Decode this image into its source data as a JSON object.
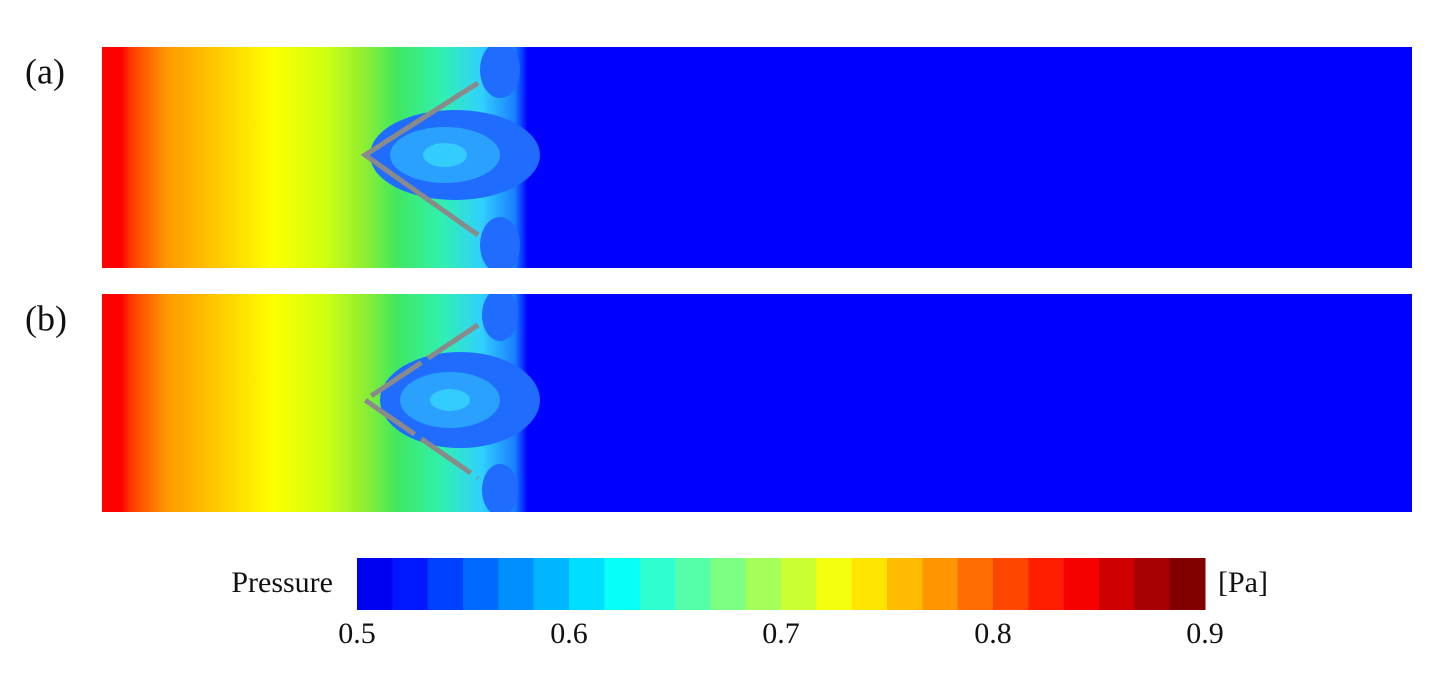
{
  "panels": [
    {
      "label": "(a)"
    },
    {
      "label": "(b)"
    }
  ],
  "colorbar": {
    "title": "Pressure",
    "unit": "[Pa]",
    "range": [
      0.5,
      0.9
    ],
    "ticks": [
      0.5,
      0.6,
      0.7,
      0.8,
      0.9
    ]
  }
}
